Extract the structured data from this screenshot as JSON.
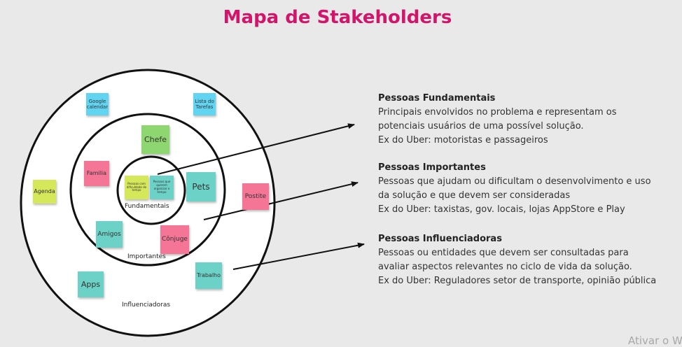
{
  "title": "Mapa de Stakeholders",
  "colors": {
    "title": "#d2146a",
    "blue": "#61d4f2",
    "green": "#8dd670",
    "lime": "#d4e85a",
    "pink": "#f47596",
    "teal": "#6cd1c6"
  },
  "rings": {
    "inner_label": "Fundamentais",
    "middle_label": "Importantes",
    "outer_label": "Influenciadoras"
  },
  "notes": {
    "google": "Google calendar",
    "tarefas": "Lista do Tarefas",
    "chefe": "Chefe",
    "familia": "Familia",
    "pets": "Pets",
    "agenda": "Agenda",
    "postite": "Postite",
    "amigos": "Amigos",
    "conjuge": "Cônjuge",
    "apps": "Apps",
    "trabalho": "Trabalho",
    "fund1": "Pessoas com dificuldade de tempo",
    "fund2": "Pessoas que querem organizar o tempo"
  },
  "sections": [
    {
      "heading": "Pessoas Fundamentais",
      "line1": "Principais envolvidos no problema e representam os",
      "line2": "potenciais usuários de uma possível solução.",
      "line3": "Ex do Uber: motoristas e passageiros"
    },
    {
      "heading": "Pessoas Importantes",
      "line1": "Pessoas que ajudam ou dificultam o desenvolvimento e uso",
      "line2": "da solução e que devem ser consideradas",
      "line3": "Ex do Uber: taxistas, gov. locais, lojas AppStore e Play"
    },
    {
      "heading": "Pessoas Influenciadoras",
      "line1": "Pessoas ou entidades que devem ser consultadas para",
      "line2": "avaliar aspectos relevantes no ciclo de vida da solução.",
      "line3": "Ex do Uber: Reguladores setor de transporte, opinião pública"
    }
  ],
  "watermark": "Ativar o W"
}
